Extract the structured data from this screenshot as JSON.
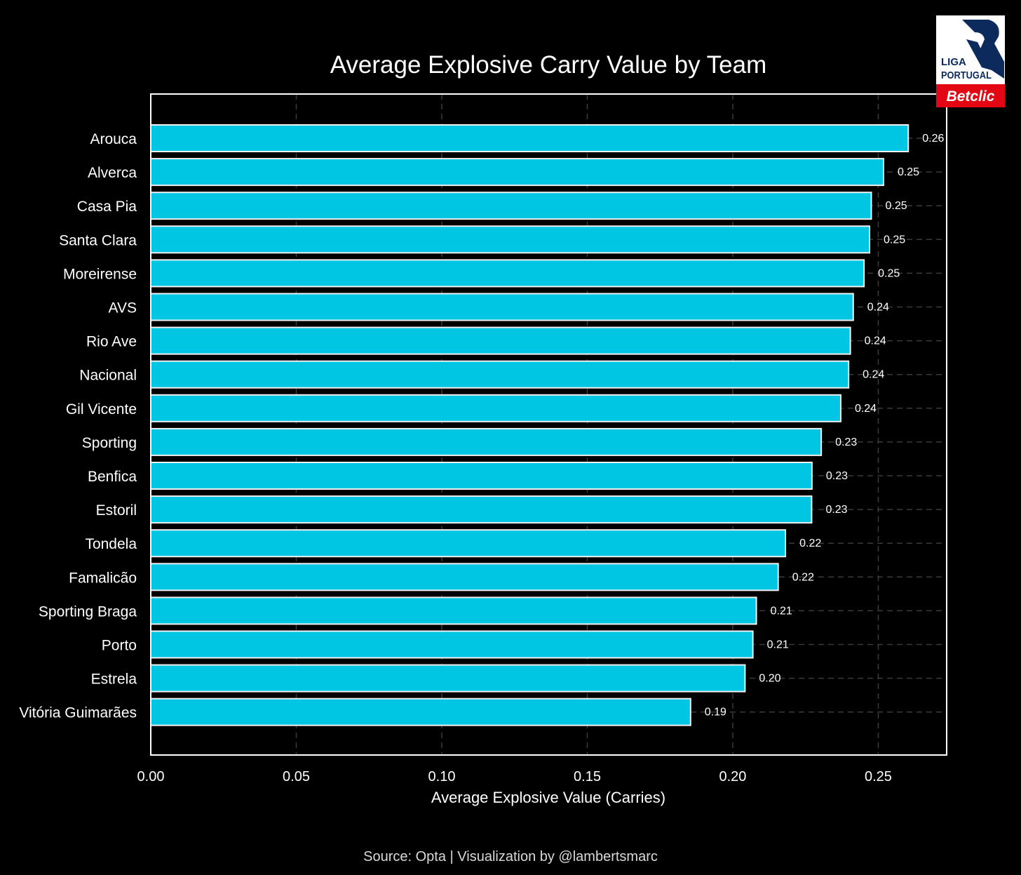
{
  "source_text": "Source: Opta | Visualization by @lambertsmarc",
  "logo": {
    "line1": "LIGA",
    "line2": "PORTUGAL",
    "sponsor": "Betclic"
  },
  "colors": {
    "bar": "#00c5e3",
    "background": "#000000",
    "logo_navy": "#0d2a5c",
    "logo_red": "#e30613"
  },
  "chart_data": {
    "type": "bar",
    "orientation": "horizontal",
    "title": "Average Explosive Carry Value by Team",
    "xlabel": "Average Explosive Value (Carries)",
    "ylabel": "",
    "xlim": [
      0,
      0.2735
    ],
    "grid": true,
    "xticks": [
      0.0,
      0.05,
      0.1,
      0.15,
      0.2,
      0.25
    ],
    "xtick_labels": [
      "0.00",
      "0.05",
      "0.10",
      "0.15",
      "0.20",
      "0.25"
    ],
    "categories": [
      "Arouca",
      "Alverca",
      "Casa Pia",
      "Santa Clara",
      "Moreirense",
      "AVS",
      "Rio Ave",
      "Nacional",
      "Gil Vicente",
      "Sporting",
      "Benfica",
      "Estoril",
      "Tondela",
      "Famalicão",
      "Sporting Braga",
      "Porto",
      "Estrela",
      "Vitória Guimarães"
    ],
    "values": [
      0.2603,
      0.2518,
      0.2476,
      0.247,
      0.2451,
      0.2414,
      0.2404,
      0.2398,
      0.2371,
      0.2304,
      0.2272,
      0.2271,
      0.2181,
      0.2156,
      0.2081,
      0.2069,
      0.2042,
      0.1855
    ],
    "value_labels": [
      "0.26",
      "0.25",
      "0.25",
      "0.25",
      "0.25",
      "0.24",
      "0.24",
      "0.24",
      "0.24",
      "0.23",
      "0.23",
      "0.23",
      "0.22",
      "0.22",
      "0.21",
      "0.21",
      "0.20",
      "0.19"
    ]
  }
}
